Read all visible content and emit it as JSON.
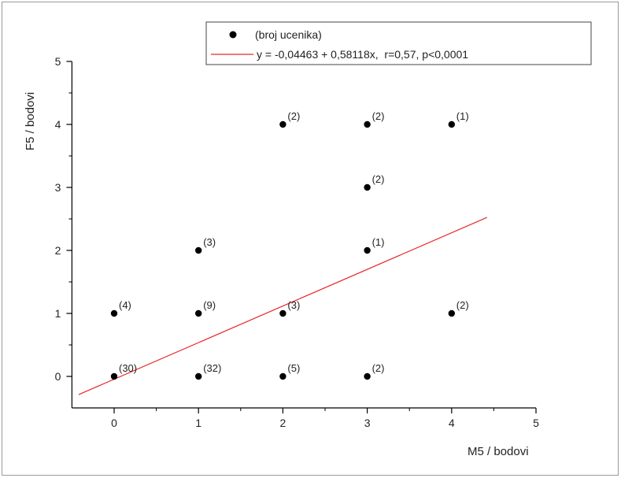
{
  "chart_data": {
    "type": "scatter",
    "xlabel": "M5 / bodovi",
    "ylabel": "F5 / bodovi",
    "xlim": [
      -0.5,
      5
    ],
    "ylim": [
      -0.5,
      5
    ],
    "xticks": [
      "0",
      "1",
      "2",
      "3",
      "4",
      "5"
    ],
    "yticks": [
      "0",
      "1",
      "2",
      "3",
      "4",
      "5"
    ],
    "points": [
      {
        "x": 0,
        "y": 0,
        "label": "(30)"
      },
      {
        "x": 0,
        "y": 1,
        "label": "(4)"
      },
      {
        "x": 1,
        "y": 0,
        "label": "(32)"
      },
      {
        "x": 1,
        "y": 1,
        "label": "(9)"
      },
      {
        "x": 1,
        "y": 2,
        "label": "(3)"
      },
      {
        "x": 2,
        "y": 0,
        "label": "(5)"
      },
      {
        "x": 2,
        "y": 1,
        "label": "(3)"
      },
      {
        "x": 2,
        "y": 4,
        "label": "(2)"
      },
      {
        "x": 3,
        "y": 0,
        "label": "(2)"
      },
      {
        "x": 3,
        "y": 2,
        "label": "(1)"
      },
      {
        "x": 3,
        "y": 3,
        "label": "(2)"
      },
      {
        "x": 3,
        "y": 4,
        "label": "(2)"
      },
      {
        "x": 4,
        "y": 1,
        "label": "(2)"
      },
      {
        "x": 4,
        "y": 4,
        "label": "(1)"
      }
    ],
    "fit_line": {
      "intercept": -0.04463,
      "slope": 0.58118,
      "x_range": [
        -0.42,
        4.42
      ],
      "color": "#e8282b"
    },
    "legend": {
      "placement": "top",
      "entries": [
        {
          "type": "marker",
          "text": "(broj ucenika)"
        },
        {
          "type": "line",
          "text": "y = -0,04463 + 0,58118x,  r=0,57, p<0,0001"
        }
      ]
    },
    "grid": false,
    "point_color": "#000000"
  }
}
